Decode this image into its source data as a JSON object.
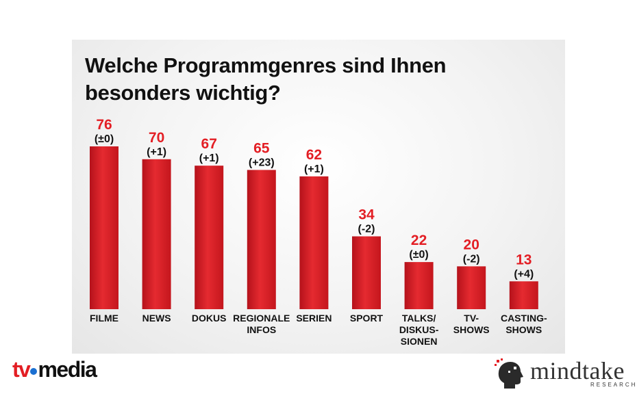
{
  "chart_data": {
    "type": "bar",
    "title": "Welche Programmgenres sind Ihnen besonders wichtig?",
    "categories": [
      [
        "FILME"
      ],
      [
        "NEWS"
      ],
      [
        "DOKUS"
      ],
      [
        "REGIONALE",
        "INFOS"
      ],
      [
        "SERIEN"
      ],
      [
        "SPORT"
      ],
      [
        "TALKS/",
        "DISKUS-",
        "SIONEN"
      ],
      [
        "TV-",
        "SHOWS"
      ],
      [
        "CASTING-",
        "SHOWS"
      ]
    ],
    "values": [
      76,
      70,
      67,
      65,
      62,
      34,
      22,
      20,
      13
    ],
    "changes": [
      "(±0)",
      "(+1)",
      "(+1)",
      "(+23)",
      "(+1)",
      "(-2)",
      "(±0)",
      "(-2)",
      "(+4)"
    ],
    "ylim": [
      0,
      76
    ],
    "grid": false,
    "bar_color": "#e31e24"
  },
  "logos": {
    "left_tv": "tv",
    "left_media": "media",
    "right_word": "mindtake",
    "right_sub": "RESEARCH"
  }
}
